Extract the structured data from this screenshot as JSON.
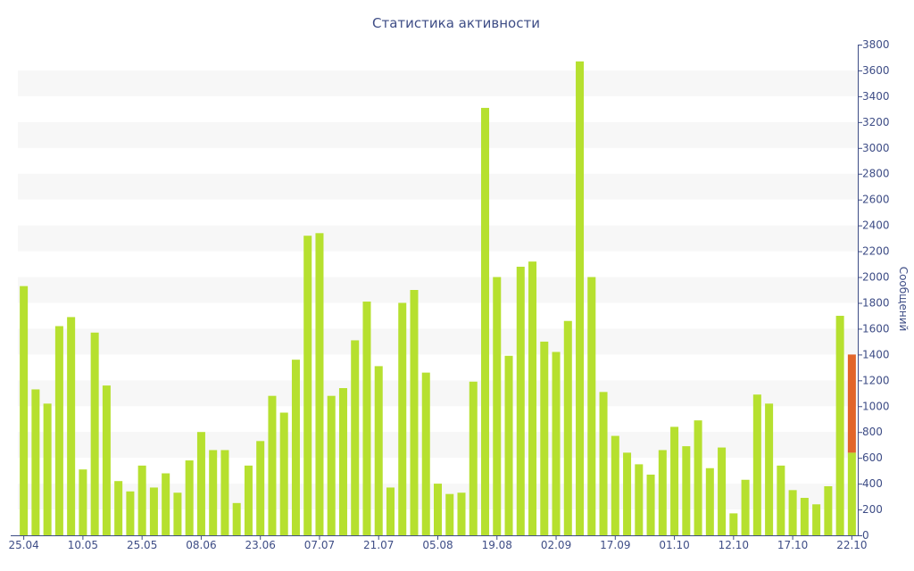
{
  "chart_data": {
    "type": "bar",
    "title": "Статистика активности",
    "xlabel": "",
    "ylabel": "Сообщений",
    "ylim": [
      0,
      3800
    ],
    "ytick_step": 200,
    "y_axis_side": "right",
    "grid": "alternating horizontal bands",
    "colors": {
      "bar": "#b6e02f",
      "highlight": "#e2652a",
      "text": "#3e4d86",
      "band": "#f7f7f7"
    },
    "x_tick_labels": [
      {
        "index": 0,
        "label": "25.04"
      },
      {
        "index": 5,
        "label": "10.05"
      },
      {
        "index": 10,
        "label": "25.05"
      },
      {
        "index": 15,
        "label": "08.06"
      },
      {
        "index": 20,
        "label": "23.06"
      },
      {
        "index": 25,
        "label": "07.07"
      },
      {
        "index": 30,
        "label": "21.07"
      },
      {
        "index": 35,
        "label": "05.08"
      },
      {
        "index": 40,
        "label": "19.08"
      },
      {
        "index": 45,
        "label": "02.09"
      },
      {
        "index": 50,
        "label": "17.09"
      },
      {
        "index": 55,
        "label": "01.10"
      },
      {
        "index": 60,
        "label": "12.10"
      },
      {
        "index": 65,
        "label": "17.10"
      },
      {
        "index": 70,
        "label": "22.10"
      }
    ],
    "series": [
      {
        "color": "#b6e02f",
        "values": [
          1930,
          1130,
          1020,
          1620,
          1690,
          510,
          1570,
          1160,
          420,
          340,
          540,
          370,
          480,
          330,
          580,
          800,
          660,
          660,
          250,
          540,
          730,
          1080,
          950,
          1360,
          2320,
          2340,
          1080,
          1140,
          1510,
          1810,
          1310,
          370,
          1800,
          1900,
          1260,
          400,
          320,
          330,
          1190,
          3310,
          2000,
          1390,
          2080,
          2120,
          1500,
          1420,
          1660,
          3670,
          2000,
          1110,
          770,
          640,
          550,
          470,
          660,
          840,
          690,
          890,
          520,
          680,
          170,
          430,
          1090,
          1020,
          540,
          350,
          290,
          240,
          380,
          1700,
          640
        ]
      },
      {
        "color": "#e2652a",
        "values": [
          0,
          0,
          0,
          0,
          0,
          0,
          0,
          0,
          0,
          0,
          0,
          0,
          0,
          0,
          0,
          0,
          0,
          0,
          0,
          0,
          0,
          0,
          0,
          0,
          0,
          0,
          0,
          0,
          0,
          0,
          0,
          0,
          0,
          0,
          0,
          0,
          0,
          0,
          0,
          0,
          0,
          0,
          0,
          0,
          0,
          0,
          0,
          0,
          0,
          0,
          0,
          0,
          0,
          0,
          0,
          0,
          0,
          0,
          0,
          0,
          0,
          0,
          0,
          0,
          0,
          0,
          0,
          0,
          0,
          0,
          760
        ]
      }
    ]
  }
}
